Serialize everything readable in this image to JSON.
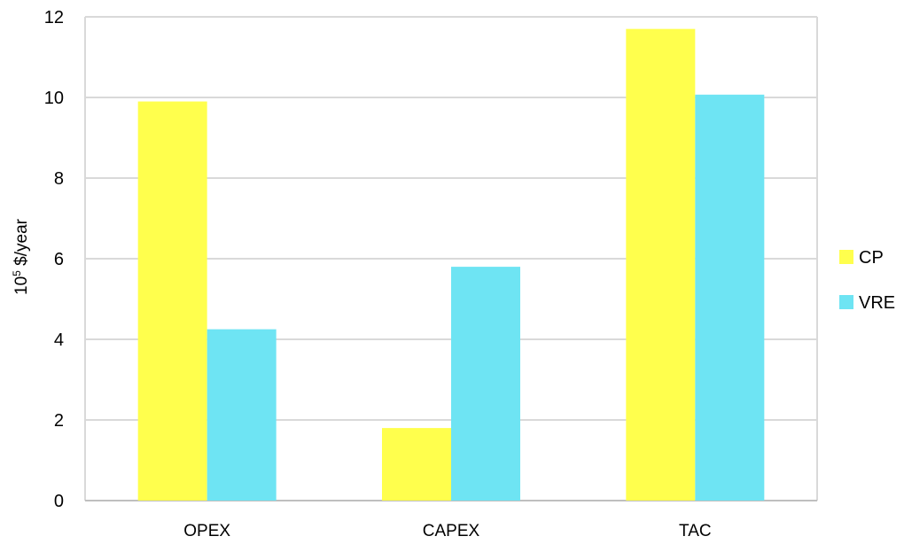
{
  "chart_data": {
    "type": "bar",
    "categories": [
      "OPEX",
      "CAPEX",
      "TAC"
    ],
    "series": [
      {
        "name": "CP",
        "values": [
          9.9,
          1.8,
          11.7
        ],
        "color": "#FFFF4D"
      },
      {
        "name": "VRE",
        "values": [
          4.25,
          5.8,
          10.07
        ],
        "color": "#6EE4F3"
      }
    ],
    "ylabel_base": "10",
    "ylabel_exp": "5",
    "ylabel_unit": " $/year",
    "ylim": [
      0,
      12
    ],
    "yticks": [
      "0",
      "2",
      "4",
      "6",
      "8",
      "10",
      "12"
    ],
    "grid": true,
    "legend_position": "right"
  }
}
